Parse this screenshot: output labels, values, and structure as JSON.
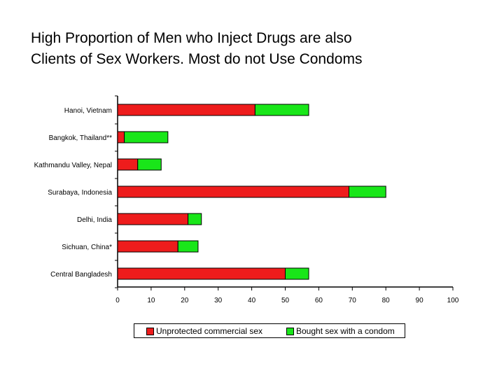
{
  "title": {
    "line1": "High Proportion of Men who Inject Drugs are also",
    "line2": "Clients of Sex Workers.  Most do not Use Condoms"
  },
  "colors": {
    "unprotected": "#ee1c1c",
    "condom": "#19e619",
    "axis": "#000000"
  },
  "chart_data": {
    "type": "bar",
    "orientation": "horizontal",
    "stacked": true,
    "categories": [
      "Hanoi, Vietnam",
      "Bangkok, Thailand**",
      "Kathmandu Valley, Nepal",
      "Surabaya, Indonesia",
      "Delhi, India",
      "Sichuan, China*",
      "Central Bangladesh"
    ],
    "series": [
      {
        "name": "Unprotected commercial sex",
        "values": [
          41,
          2,
          6,
          69,
          21,
          18,
          50
        ]
      },
      {
        "name": "Bought sex with a condom",
        "values": [
          16,
          13,
          7,
          11,
          4,
          6,
          7
        ]
      }
    ],
    "xlim": [
      0,
      100
    ],
    "xticks": [
      0,
      10,
      20,
      30,
      40,
      50,
      60,
      70,
      80,
      90,
      100
    ],
    "grid": false,
    "legend_position": "bottom"
  }
}
